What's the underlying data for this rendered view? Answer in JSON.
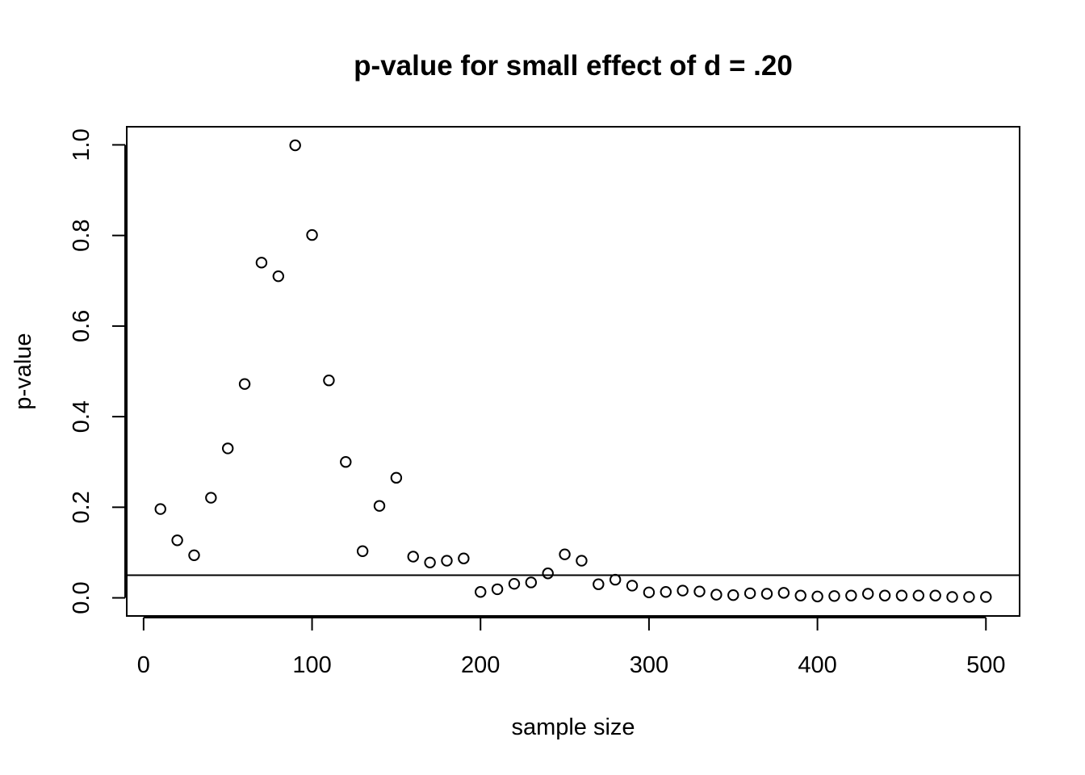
{
  "chart_data": {
    "type": "scatter",
    "title": "p-value for small effect of d = .20",
    "xlabel": "sample size",
    "ylabel": "p-value",
    "xlim": [
      -10,
      520
    ],
    "ylim": [
      -0.04,
      1.04
    ],
    "xticks": [
      0,
      100,
      200,
      300,
      400,
      500
    ],
    "xtick_labels": [
      "0",
      "100",
      "200",
      "300",
      "400",
      "500"
    ],
    "yticks": [
      0.0,
      0.2,
      0.4,
      0.6,
      0.8,
      1.0
    ],
    "ytick_labels": [
      "0.0",
      "0.2",
      "0.4",
      "0.6",
      "0.8",
      "1.0"
    ],
    "hline": 0.05,
    "grid": false,
    "x": [
      10,
      20,
      30,
      40,
      50,
      60,
      70,
      80,
      90,
      100,
      110,
      120,
      130,
      140,
      150,
      160,
      170,
      180,
      190,
      200,
      210,
      220,
      230,
      240,
      250,
      260,
      270,
      280,
      290,
      300,
      310,
      320,
      330,
      340,
      350,
      360,
      370,
      380,
      390,
      400,
      410,
      420,
      430,
      440,
      450,
      460,
      470,
      480,
      490,
      500
    ],
    "y": [
      0.196,
      0.127,
      0.094,
      0.221,
      0.33,
      0.472,
      0.74,
      0.71,
      0.999,
      0.801,
      0.48,
      0.3,
      0.103,
      0.203,
      0.265,
      0.091,
      0.078,
      0.082,
      0.087,
      0.013,
      0.019,
      0.031,
      0.034,
      0.054,
      0.096,
      0.082,
      0.03,
      0.04,
      0.027,
      0.012,
      0.013,
      0.016,
      0.014,
      0.007,
      0.006,
      0.01,
      0.009,
      0.011,
      0.005,
      0.003,
      0.004,
      0.005,
      0.009,
      0.005,
      0.005,
      0.005,
      0.005,
      0.002,
      0.002,
      0.002
    ]
  }
}
